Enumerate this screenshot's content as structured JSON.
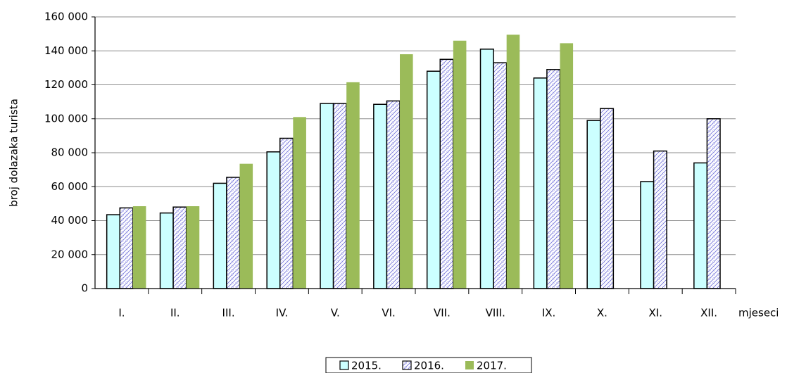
{
  "chart_data": {
    "type": "bar",
    "y_label": "broj dolazaka turista",
    "x_label": "mjeseci",
    "categories": [
      "I.",
      "II.",
      "III.",
      "IV.",
      "V.",
      "VI.",
      "VII.",
      "VIII.",
      "IX.",
      "X.",
      "XI.",
      "XII."
    ],
    "series": [
      {
        "name": "2015.",
        "color": "#ccffff",
        "values": [
          43500,
          44500,
          62000,
          80500,
          109000,
          108500,
          128000,
          141000,
          124000,
          99000,
          63000,
          74000
        ]
      },
      {
        "name": "2016.",
        "color": "#ffffff",
        "values": [
          47500,
          48000,
          65500,
          88500,
          109000,
          110500,
          135000,
          133000,
          129000,
          106000,
          81000,
          100000
        ]
      },
      {
        "name": "2017.",
        "color": "#9bbb59",
        "values": [
          48500,
          48500,
          73500,
          101000,
          121500,
          138000,
          146000,
          149500,
          144500,
          null,
          null,
          null
        ]
      }
    ],
    "ylim": [
      0,
      160000
    ],
    "yticks": [
      0,
      {
        "value": 20000,
        "label": "20 000"
      },
      {
        "value": 40000,
        "label": "40 000"
      },
      {
        "value": 60000,
        "label": "60 000"
      },
      {
        "value": 80000,
        "label": "80 000"
      },
      {
        "value": 100000,
        "label": "100 000"
      },
      {
        "value": 120000,
        "label": "120 000"
      },
      {
        "value": 140000,
        "label": "140 000"
      },
      {
        "value": 160000,
        "label": "160 000"
      }
    ],
    "grid": true,
    "legend": "bottom"
  }
}
